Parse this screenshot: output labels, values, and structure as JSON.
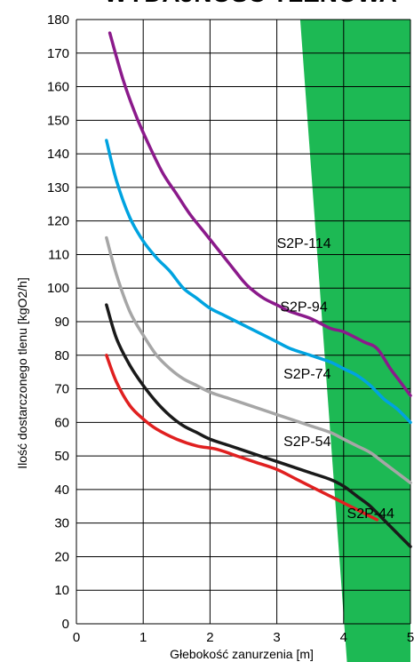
{
  "chart_data": {
    "type": "line",
    "title": "WYDAJNOŚĆ TLENOWA",
    "xlabel": "Głebokość zanurzenia [m]",
    "ylabel": "Ilość dostarczonego tlenu [kgO2/h]",
    "xlim": [
      0,
      5
    ],
    "ylim": [
      0,
      180
    ],
    "x_ticks": [
      0,
      1,
      2,
      3,
      4,
      5
    ],
    "y_ticks": [
      0,
      10,
      20,
      30,
      40,
      50,
      60,
      70,
      80,
      90,
      100,
      110,
      120,
      130,
      140,
      150,
      160,
      170,
      180
    ],
    "grid": true,
    "region": {
      "color": "#1db954",
      "top_x": [
        3.35,
        5.0
      ],
      "bottom_x": [
        4.05,
        5.0
      ]
    },
    "series": [
      {
        "name": "S2P-114",
        "color": "#8b1a8b",
        "points": [
          [
            0.5,
            176
          ],
          [
            0.7,
            162
          ],
          [
            0.9,
            151
          ],
          [
            1.1,
            142
          ],
          [
            1.3,
            134
          ],
          [
            1.5,
            128
          ],
          [
            1.7,
            122
          ],
          [
            1.9,
            117
          ],
          [
            2.1,
            112
          ],
          [
            2.3,
            107
          ],
          [
            2.5,
            102
          ],
          [
            2.6,
            100
          ],
          [
            2.8,
            97
          ],
          [
            3.0,
            95
          ],
          [
            3.2,
            93
          ],
          [
            3.5,
            91
          ],
          [
            3.8,
            88
          ],
          [
            4.0,
            87
          ],
          [
            4.3,
            84
          ],
          [
            4.5,
            82
          ],
          [
            4.7,
            76
          ],
          [
            4.85,
            72
          ],
          [
            5.0,
            68
          ]
        ]
      },
      {
        "name": "S2P-94",
        "color": "#00a3e0",
        "points": [
          [
            0.45,
            144
          ],
          [
            0.6,
            132
          ],
          [
            0.8,
            121
          ],
          [
            1.0,
            114
          ],
          [
            1.2,
            109
          ],
          [
            1.4,
            105
          ],
          [
            1.6,
            100
          ],
          [
            1.8,
            97
          ],
          [
            2.0,
            94
          ],
          [
            2.2,
            92
          ],
          [
            2.4,
            90
          ],
          [
            2.6,
            88
          ],
          [
            2.8,
            86
          ],
          [
            3.0,
            84
          ],
          [
            3.2,
            82
          ],
          [
            3.5,
            80
          ],
          [
            3.8,
            78
          ],
          [
            4.0,
            76
          ],
          [
            4.2,
            74
          ],
          [
            4.4,
            71
          ],
          [
            4.6,
            67
          ],
          [
            4.8,
            64
          ],
          [
            5.0,
            60
          ]
        ]
      },
      {
        "name": "S2P-74",
        "color": "#a6a6a6",
        "points": [
          [
            0.45,
            115
          ],
          [
            0.6,
            104
          ],
          [
            0.8,
            93
          ],
          [
            1.0,
            86
          ],
          [
            1.2,
            80
          ],
          [
            1.4,
            76
          ],
          [
            1.6,
            73
          ],
          [
            1.8,
            71
          ],
          [
            2.0,
            69
          ],
          [
            2.3,
            67
          ],
          [
            2.6,
            65
          ],
          [
            2.9,
            63
          ],
          [
            3.2,
            61
          ],
          [
            3.5,
            59
          ],
          [
            3.8,
            57
          ],
          [
            4.0,
            55
          ],
          [
            4.2,
            53
          ],
          [
            4.4,
            51
          ],
          [
            4.6,
            48
          ],
          [
            4.8,
            45
          ],
          [
            5.0,
            42
          ]
        ]
      },
      {
        "name": "S2P-54",
        "color": "#1a1a1a",
        "points": [
          [
            0.45,
            95
          ],
          [
            0.6,
            85
          ],
          [
            0.8,
            77
          ],
          [
            1.0,
            71
          ],
          [
            1.2,
            66
          ],
          [
            1.4,
            62
          ],
          [
            1.6,
            59
          ],
          [
            1.8,
            57
          ],
          [
            2.0,
            55
          ],
          [
            2.3,
            53
          ],
          [
            2.6,
            51
          ],
          [
            2.9,
            49
          ],
          [
            3.2,
            47
          ],
          [
            3.5,
            45
          ],
          [
            3.8,
            43
          ],
          [
            4.0,
            41
          ],
          [
            4.2,
            38
          ],
          [
            4.4,
            35
          ],
          [
            4.6,
            31
          ],
          [
            4.8,
            27
          ],
          [
            5.0,
            23
          ]
        ]
      },
      {
        "name": "S2P-44",
        "color": "#e02020",
        "points": [
          [
            0.45,
            80
          ],
          [
            0.6,
            72
          ],
          [
            0.8,
            65
          ],
          [
            1.0,
            61
          ],
          [
            1.2,
            58
          ],
          [
            1.5,
            55
          ],
          [
            1.8,
            53
          ],
          [
            2.1,
            52
          ],
          [
            2.4,
            50
          ],
          [
            2.7,
            48
          ],
          [
            3.0,
            46
          ],
          [
            3.3,
            43
          ],
          [
            3.6,
            40
          ],
          [
            3.9,
            37
          ],
          [
            4.2,
            34
          ],
          [
            4.5,
            31
          ]
        ]
      }
    ],
    "series_labels": [
      {
        "text": "S2P-114",
        "x": 3.0,
        "y": 112
      },
      {
        "text": "S2P-94",
        "x": 3.05,
        "y": 93
      },
      {
        "text": "S2P-74",
        "x": 3.1,
        "y": 73
      },
      {
        "text": "S2P-54",
        "x": 3.1,
        "y": 53
      },
      {
        "text": "S2P-44",
        "x": 4.05,
        "y": 31.5
      }
    ]
  }
}
